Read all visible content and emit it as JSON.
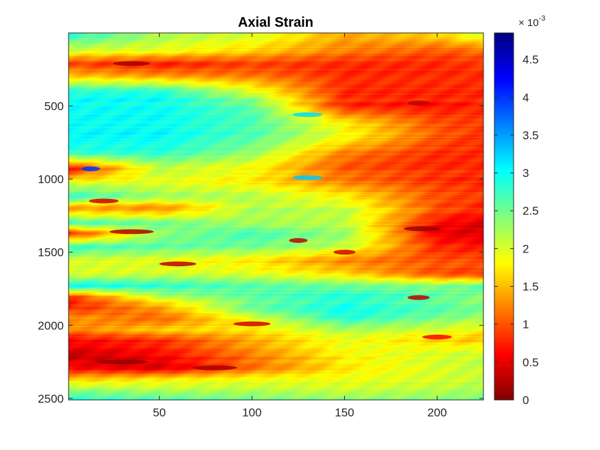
{
  "chart_data": {
    "type": "heatmap",
    "title": "Axial Strain",
    "xlabel": "",
    "ylabel": "",
    "x_range": [
      1,
      225
    ],
    "y_range": [
      1,
      2510
    ],
    "y_direction": "reversed",
    "x_ticks": [
      50,
      100,
      150,
      200
    ],
    "y_ticks": [
      500,
      1000,
      1500,
      2000,
      2500
    ],
    "colormap": "jet",
    "colormap_direction": "reversed (0 = dark red, max = dark blue)",
    "colorbar": {
      "range": [
        0,
        4.85
      ],
      "ticks": [
        0,
        0.5,
        1,
        1.5,
        2,
        2.5,
        3,
        3.5,
        4,
        4.5
      ],
      "tick_labels": [
        "0",
        "0.5",
        "1",
        "1.5",
        "2",
        "2.5",
        "3",
        "3.5",
        "4",
        "4.5"
      ],
      "multiplier_base": "× 10",
      "multiplier_exponent": "-3"
    },
    "bands_note": "approximate strain values (×10^-3) across depth rows at lateral positions x = 1, 50, 100, 150, 200, 225",
    "bands": [
      {
        "y": 20,
        "values": [
          2.8,
          2.2,
          2.0,
          1.4,
          1.6,
          2.0
        ]
      },
      {
        "y": 120,
        "values": [
          2.0,
          1.9,
          1.6,
          1.2,
          1.0,
          1.1
        ]
      },
      {
        "y": 210,
        "values": [
          0.9,
          0.7,
          0.9,
          0.8,
          0.8,
          0.9
        ]
      },
      {
        "y": 300,
        "values": [
          1.6,
          1.4,
          1.2,
          0.8,
          0.8,
          0.8
        ]
      },
      {
        "y": 400,
        "values": [
          2.9,
          2.9,
          2.0,
          0.8,
          0.8,
          0.8
        ]
      },
      {
        "y": 500,
        "values": [
          3.0,
          3.0,
          2.6,
          0.8,
          0.7,
          0.8
        ]
      },
      {
        "y": 620,
        "values": [
          3.0,
          3.0,
          2.7,
          1.8,
          1.0,
          0.9
        ]
      },
      {
        "y": 720,
        "values": [
          3.0,
          3.0,
          2.6,
          1.8,
          1.0,
          0.8
        ]
      },
      {
        "y": 820,
        "values": [
          2.8,
          2.8,
          2.3,
          1.2,
          0.8,
          0.8
        ]
      },
      {
        "y": 930,
        "values": [
          0.6,
          2.1,
          1.8,
          1.0,
          0.8,
          0.8
        ]
      },
      {
        "y": 1030,
        "values": [
          2.1,
          2.0,
          1.8,
          1.3,
          0.9,
          0.8
        ]
      },
      {
        "y": 1120,
        "values": [
          2.8,
          2.3,
          2.2,
          1.8,
          1.0,
          0.9
        ]
      },
      {
        "y": 1200,
        "values": [
          1.3,
          1.2,
          2.2,
          2.1,
          1.0,
          0.8
        ]
      },
      {
        "y": 1300,
        "values": [
          2.7,
          2.5,
          2.2,
          2.1,
          0.6,
          0.4
        ]
      },
      {
        "y": 1370,
        "values": [
          0.7,
          2.3,
          2.7,
          2.3,
          0.5,
          0.4
        ]
      },
      {
        "y": 1460,
        "values": [
          2.8,
          2.6,
          2.5,
          2.1,
          0.8,
          0.7
        ]
      },
      {
        "y": 1560,
        "values": [
          2.0,
          1.9,
          1.7,
          1.2,
          1.0,
          1.0
        ]
      },
      {
        "y": 1650,
        "values": [
          2.0,
          2.1,
          2.0,
          1.7,
          1.0,
          0.9
        ]
      },
      {
        "y": 1730,
        "values": [
          3.0,
          2.8,
          2.6,
          2.5,
          2.4,
          2.6
        ]
      },
      {
        "y": 1800,
        "values": [
          0.9,
          2.2,
          2.6,
          2.9,
          2.6,
          2.4
        ]
      },
      {
        "y": 1880,
        "values": [
          0.7,
          1.3,
          2.5,
          2.9,
          2.6,
          2.4
        ]
      },
      {
        "y": 1950,
        "values": [
          1.4,
          1.1,
          2.0,
          2.9,
          2.5,
          2.3
        ]
      },
      {
        "y": 2030,
        "values": [
          1.2,
          1.6,
          1.7,
          2.2,
          2.0,
          1.8
        ]
      },
      {
        "y": 2100,
        "values": [
          0.6,
          0.8,
          1.4,
          1.9,
          1.6,
          1.5
        ]
      },
      {
        "y": 2200,
        "values": [
          0.3,
          0.6,
          1.2,
          1.8,
          2.0,
          2.1
        ]
      },
      {
        "y": 2290,
        "values": [
          0.6,
          0.4,
          1.1,
          1.7,
          2.0,
          2.1
        ]
      },
      {
        "y": 2370,
        "values": [
          1.6,
          1.8,
          1.9,
          1.9,
          2.0,
          2.1
        ]
      },
      {
        "y": 2440,
        "values": [
          2.4,
          2.2,
          2.2,
          2.1,
          2.2,
          2.3
        ]
      },
      {
        "y": 2510,
        "values": [
          2.9,
          2.7,
          2.5,
          2.4,
          2.4,
          2.5
        ]
      }
    ],
    "hotspots_note": "small localized features: [x, y, value, relative x-extent]",
    "hotspots": [
      [
        35,
        210,
        0.2,
        10
      ],
      [
        130,
        560,
        3.2,
        8
      ],
      [
        190,
        480,
        0.3,
        6
      ],
      [
        13,
        930,
        4.0,
        5
      ],
      [
        130,
        990,
        3.3,
        8
      ],
      [
        20,
        1150,
        0.4,
        8
      ],
      [
        192,
        1340,
        0.1,
        10
      ],
      [
        35,
        1360,
        0.2,
        12
      ],
      [
        125,
        1420,
        0.3,
        5
      ],
      [
        60,
        1580,
        0.3,
        10
      ],
      [
        150,
        1500,
        0.4,
        6
      ],
      [
        190,
        1810,
        0.3,
        6
      ],
      [
        100,
        1990,
        0.4,
        10
      ],
      [
        200,
        2080,
        0.6,
        8
      ],
      [
        30,
        2250,
        0.1,
        14
      ],
      [
        80,
        2290,
        0.2,
        12
      ]
    ]
  }
}
